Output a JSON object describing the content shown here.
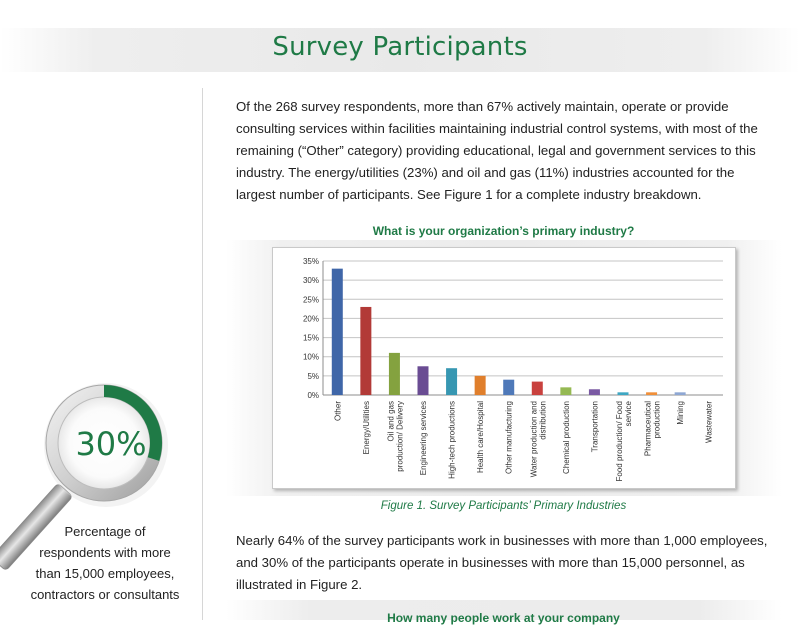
{
  "header": {
    "title": "Survey Participants"
  },
  "intro": {
    "text": "Of the 268 survey respondents, more than 67% actively maintain, operate or provide consulting services within facilities maintaining industrial control systems, with most of the remaining (“Other” category) providing educational, legal and government services to this industry. The energy/utilities (23%) and oil and gas (11%) industries accounted for the largest number of participants. See Figure 1 for a complete industry breakdown."
  },
  "chart_question": "What is your organization’s primary industry?",
  "chart_data": {
    "type": "bar",
    "title": "What is your organization’s primary industry?",
    "categories": [
      "Other",
      "Energy/Utilities",
      "Oil and gas production/ Delivery",
      "Engineering services",
      "High-tech productions",
      "Health care/Hospital",
      "Other manufacturing",
      "Water production and distribution",
      "Chemical production",
      "Transportation",
      "Food production/ Food service",
      "Pharmaceutical production",
      "Mining",
      "Wastewater"
    ],
    "values": [
      33,
      23,
      11,
      7.5,
      7,
      5,
      4,
      3.5,
      2,
      1.5,
      0.7,
      0.7,
      0.7,
      0
    ],
    "colors": [
      "#3f66a8",
      "#b23a37",
      "#84a23f",
      "#6a4c93",
      "#3797b2",
      "#e07f2c",
      "#4f79b9",
      "#c9413e",
      "#95b953",
      "#7a5aa3",
      "#3ea7c3",
      "#f08f39",
      "#8ea7d3",
      "#d38b8a"
    ],
    "yticks": [
      "0%",
      "5%",
      "10%",
      "15%",
      "20%",
      "25%",
      "30%",
      "35%"
    ],
    "ylim": [
      0,
      35
    ],
    "grid": true,
    "xlabel": "",
    "ylabel": ""
  },
  "figure_caption": "Figure 1. Survey Participants’ Primary Industries",
  "para2": {
    "text": "Nearly 64% of the survey participants work in businesses with more than 1,000 employees, and 30% of the participants operate in businesses with more than 15,000 personnel, as illustrated in Figure 2."
  },
  "next_question": "How many people work at your company",
  "sidebar_stat": {
    "value": "30%",
    "fraction": 0.3,
    "caption": "Percentage of respondents with more than 15,000 employees, contractors or consultants"
  }
}
